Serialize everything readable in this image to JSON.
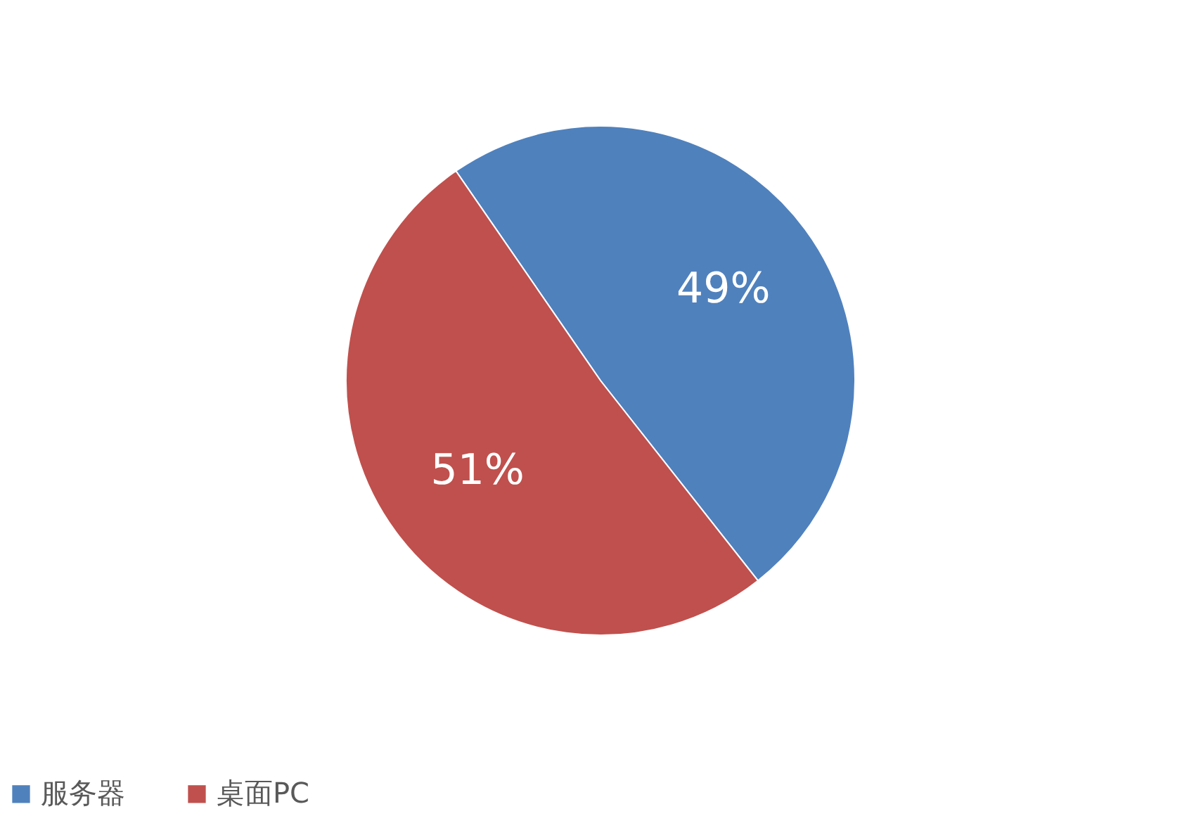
{
  "chart_data": {
    "type": "pie",
    "categories": [
      "服务器",
      "桌面PC"
    ],
    "values": [
      49,
      51
    ],
    "colors": [
      "#4f81bd",
      "#c0504d"
    ],
    "value_labels": [
      "49%",
      "51%"
    ],
    "legend": "bottom"
  }
}
